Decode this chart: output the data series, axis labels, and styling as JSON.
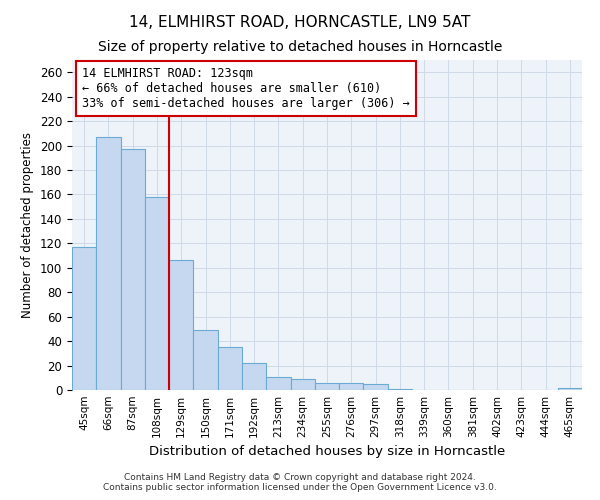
{
  "title": "14, ELMHIRST ROAD, HORNCASTLE, LN9 5AT",
  "subtitle": "Size of property relative to detached houses in Horncastle",
  "xlabel": "Distribution of detached houses by size in Horncastle",
  "ylabel": "Number of detached properties",
  "footer_line1": "Contains HM Land Registry data © Crown copyright and database right 2024.",
  "footer_line2": "Contains public sector information licensed under the Open Government Licence v3.0.",
  "bin_labels": [
    "45sqm",
    "66sqm",
    "87sqm",
    "108sqm",
    "129sqm",
    "150sqm",
    "171sqm",
    "192sqm",
    "213sqm",
    "234sqm",
    "255sqm",
    "276sqm",
    "297sqm",
    "318sqm",
    "339sqm",
    "360sqm",
    "381sqm",
    "402sqm",
    "423sqm",
    "444sqm",
    "465sqm"
  ],
  "bar_values": [
    117,
    207,
    197,
    158,
    106,
    49,
    35,
    22,
    11,
    9,
    6,
    6,
    5,
    1,
    0,
    0,
    0,
    0,
    0,
    0,
    2
  ],
  "bar_color": "#c5d8f0",
  "bar_edge_color": "#6aaad4",
  "grid_color": "#d0d9e8",
  "property_line_color": "#cc0000",
  "annotation_line1": "14 ELMHIRST ROAD: 123sqm",
  "annotation_line2": "← 66% of detached houses are smaller (610)",
  "annotation_line3": "33% of semi-detached houses are larger (306) →",
  "annotation_box_color": "#cc0000",
  "ylim": [
    0,
    270
  ],
  "yticks": [
    0,
    20,
    40,
    60,
    80,
    100,
    120,
    140,
    160,
    180,
    200,
    220,
    240,
    260
  ],
  "background_color": "#ffffff",
  "plot_bg_color": "#eef2f9",
  "title_fontsize": 11,
  "subtitle_fontsize": 10,
  "annotation_fontsize": 8.5,
  "ylabel_fontsize": 8.5,
  "xlabel_fontsize": 9.5,
  "footer_fontsize": 6.5
}
